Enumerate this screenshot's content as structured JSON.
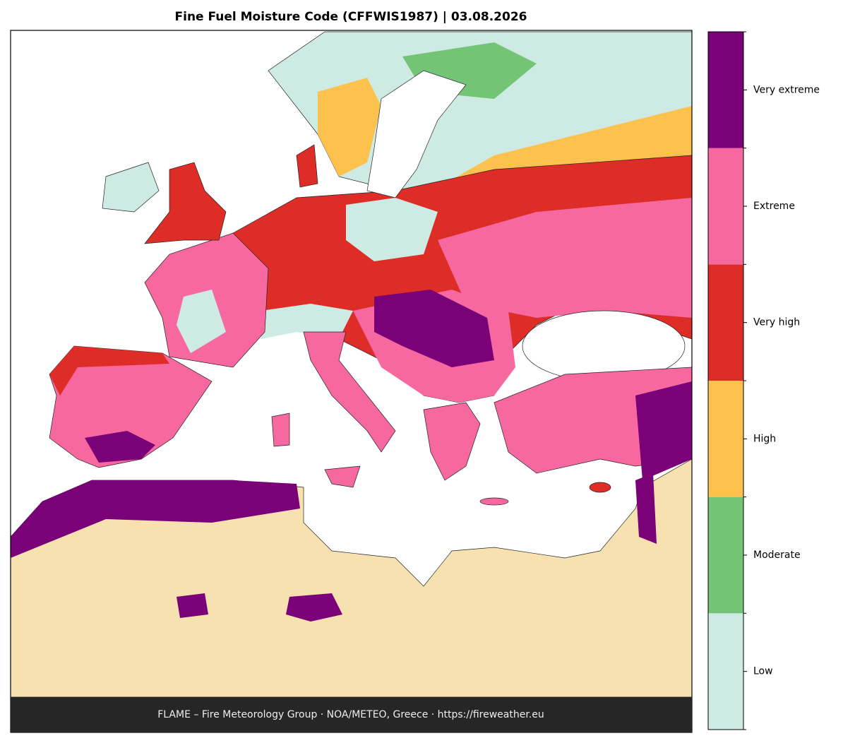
{
  "header": {
    "title": "Fine Fuel Moisture Code (CFFWIS1987)  |  03.08.2026"
  },
  "footer": {
    "text": "FLAME – Fire Meteorology Group · NOA/METEO, Greece · https://fireweather.eu"
  },
  "legend": {
    "items": [
      {
        "label": "Low",
        "color": "#cdebe3"
      },
      {
        "label": "Moderate",
        "color": "#74c476"
      },
      {
        "label": "High",
        "color": "#fdc14d"
      },
      {
        "label": "Very high",
        "color": "#de2d26"
      },
      {
        "label": "Extreme",
        "color": "#f768a1"
      },
      {
        "label": "Very extreme",
        "color": "#7a0177"
      }
    ]
  }
}
